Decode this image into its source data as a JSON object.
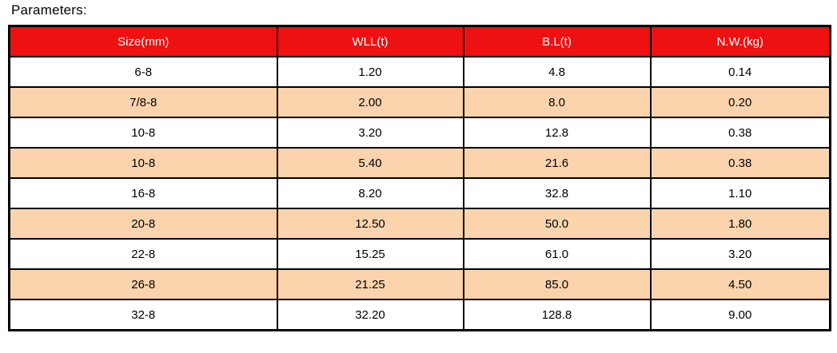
{
  "page": {
    "title": "Parameters:"
  },
  "table": {
    "columns": [
      "Size(mm)",
      "WLL(t)",
      "B.L(t)",
      "N.W.(kg)"
    ],
    "rows": [
      [
        "6-8",
        "1.20",
        "4.8",
        "0.14"
      ],
      [
        "7/8-8",
        "2.00",
        "8.0",
        "0.20"
      ],
      [
        "10-8",
        "3.20",
        "12.8",
        "0.38"
      ],
      [
        "10-8",
        "5.40",
        "21.6",
        "0.38"
      ],
      [
        "16-8",
        "8.20",
        "32.8",
        "1.10"
      ],
      [
        "20-8",
        "12.50",
        "50.0",
        "1.80"
      ],
      [
        "22-8",
        "15.25",
        "61.0",
        "3.20"
      ],
      [
        "26-8",
        "21.25",
        "85.0",
        "4.50"
      ],
      [
        "32-8",
        "32.20",
        "128.8",
        "9.00"
      ]
    ],
    "colors": {
      "header_bg": "#ee1111",
      "header_text": "#ffffff",
      "row_bg": "#ffffff",
      "row_alt_bg": "#fbd4ae",
      "border": "#000000"
    }
  },
  "chart_data": {
    "type": "table",
    "title": "Parameters:",
    "columns": [
      "Size(mm)",
      "WLL(t)",
      "B.L(t)",
      "N.W.(kg)"
    ],
    "rows": [
      [
        "6-8",
        "1.20",
        "4.8",
        "0.14"
      ],
      [
        "7/8-8",
        "2.00",
        "8.0",
        "0.20"
      ],
      [
        "10-8",
        "3.20",
        "12.8",
        "0.38"
      ],
      [
        "10-8",
        "5.40",
        "21.6",
        "0.38"
      ],
      [
        "16-8",
        "8.20",
        "32.8",
        "1.10"
      ],
      [
        "20-8",
        "12.50",
        "50.0",
        "1.80"
      ],
      [
        "22-8",
        "15.25",
        "61.0",
        "3.20"
      ],
      [
        "26-8",
        "21.25",
        "85.0",
        "4.50"
      ],
      [
        "32-8",
        "32.20",
        "128.8",
        "9.00"
      ]
    ]
  }
}
